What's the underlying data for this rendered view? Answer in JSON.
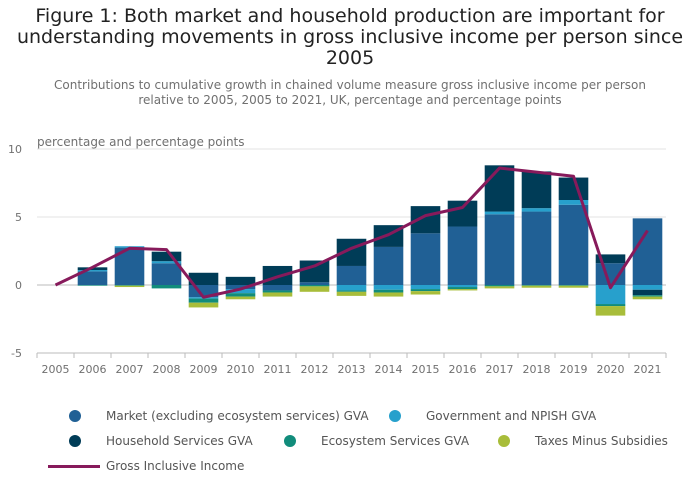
{
  "chart_data": {
    "type": "bar",
    "title": "Figure 1: Both market and household production are important for understanding movements in gross inclusive income per person since 2005",
    "subtitle": "Contributions to cumulative growth in chained volume measure gross inclusive income per person relative to 2005, 2005 to 2021, UK, percentage and percentage points",
    "ylabel": "percentage and percentage points",
    "ylim": [
      -5,
      10
    ],
    "yticks": [
      -5,
      0,
      5,
      10
    ],
    "grid": true,
    "stacked": true,
    "legend_position": "bottom",
    "categories": [
      "2005",
      "2006",
      "2007",
      "2008",
      "2009",
      "2010",
      "2011",
      "2012",
      "2013",
      "2014",
      "2015",
      "2016",
      "2017",
      "2018",
      "2019",
      "2020",
      "2021"
    ],
    "series": [
      {
        "name": "Market (excluding ecosystem services) GVA",
        "color": "#206095",
        "kind": "bar",
        "values": [
          0,
          1.0,
          2.75,
          1.6,
          -0.9,
          -0.3,
          -0.4,
          0.2,
          1.4,
          2.8,
          3.8,
          4.3,
          5.2,
          5.4,
          5.9,
          1.6,
          4.9
        ]
      },
      {
        "name": "Government and NPISH GVA",
        "color": "#27a0cc",
        "kind": "bar",
        "values": [
          0,
          0.1,
          0.1,
          0.15,
          -0.1,
          -0.3,
          0,
          0,
          -0.4,
          -0.35,
          -0.3,
          -0.15,
          0.2,
          0.25,
          0.35,
          -1.4,
          -0.35
        ]
      },
      {
        "name": "Household Services GVA",
        "color": "#003c57",
        "kind": "bar",
        "values": [
          0,
          0.2,
          0,
          0.7,
          0.9,
          0.6,
          1.4,
          1.6,
          2.0,
          1.6,
          2.0,
          1.9,
          3.4,
          2.7,
          1.65,
          0.65,
          -0.4
        ]
      },
      {
        "name": "Ecosystem Services GVA",
        "color": "#118c7b",
        "kind": "bar",
        "values": [
          0,
          -0.05,
          -0.05,
          -0.25,
          -0.3,
          -0.25,
          -0.15,
          -0.1,
          -0.1,
          -0.2,
          -0.15,
          -0.15,
          -0.1,
          -0.05,
          -0.05,
          -0.15,
          -0.1
        ]
      },
      {
        "name": "Taxes Minus Subsidies",
        "color": "#a8bd3a",
        "kind": "bar",
        "values": [
          0,
          0,
          -0.1,
          0,
          -0.35,
          -0.2,
          -0.3,
          -0.4,
          -0.3,
          -0.3,
          -0.25,
          -0.1,
          -0.15,
          -0.15,
          -0.15,
          -0.7,
          -0.2
        ]
      },
      {
        "name": "Gross Inclusive Income",
        "color": "#871a5b",
        "kind": "line",
        "values": [
          0,
          1.3,
          2.7,
          2.6,
          -0.9,
          -0.3,
          0.6,
          1.4,
          2.7,
          3.7,
          5.1,
          5.7,
          8.6,
          8.3,
          8.0,
          -0.2,
          4.0
        ]
      }
    ]
  },
  "legend": {
    "items": [
      {
        "label": "Market (excluding ecosystem services) GVA",
        "color": "#206095",
        "kind": "dot"
      },
      {
        "label": "Government and NPISH GVA",
        "color": "#27a0cc",
        "kind": "dot"
      },
      {
        "label": "Household Services GVA",
        "color": "#003c57",
        "kind": "dot"
      },
      {
        "label": "Ecosystem Services GVA",
        "color": "#118c7b",
        "kind": "dot"
      },
      {
        "label": "Taxes Minus Subsidies",
        "color": "#a8bd3a",
        "kind": "dot"
      },
      {
        "label": "Gross Inclusive Income",
        "color": "#871a5b",
        "kind": "line"
      }
    ]
  }
}
